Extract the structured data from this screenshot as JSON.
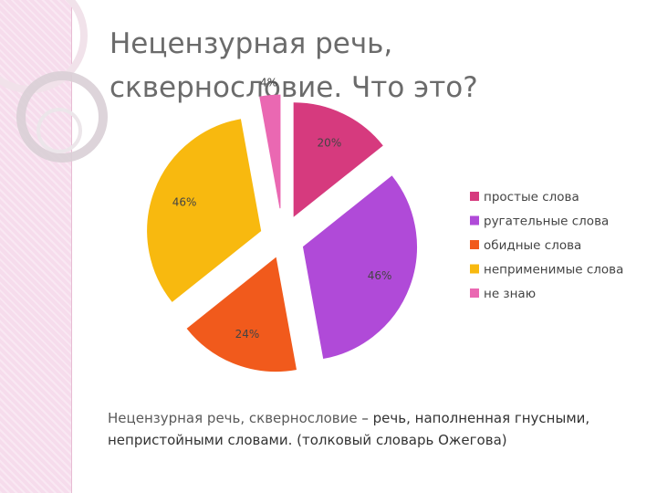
{
  "title": "Нецензурная речь,\nсквернословие. Что это?",
  "caption": {
    "term": "Нецензурная речь, сквернословие",
    "rest": " – речь, наполненная гнусными, непристойными словами. (толковый словарь Ожегова)"
  },
  "chart_data": {
    "type": "pie",
    "title": "",
    "legend_position": "right",
    "slices": [
      {
        "label": "простые слова",
        "value": 20,
        "value_label": "20%",
        "color": "#d63a7e"
      },
      {
        "label": "ругательные слова",
        "value": 46,
        "value_label": "46%",
        "color": "#b04ad8"
      },
      {
        "label": "обидные слова",
        "value": 24,
        "value_label": "24%",
        "color": "#f15a1c"
      },
      {
        "label": "неприменимые слова",
        "value": 46,
        "value_label": "46%",
        "color": "#f8b90f"
      },
      {
        "label": "не знаю",
        "value": 4,
        "value_label": "4%",
        "color": "#ea68b2"
      }
    ]
  }
}
